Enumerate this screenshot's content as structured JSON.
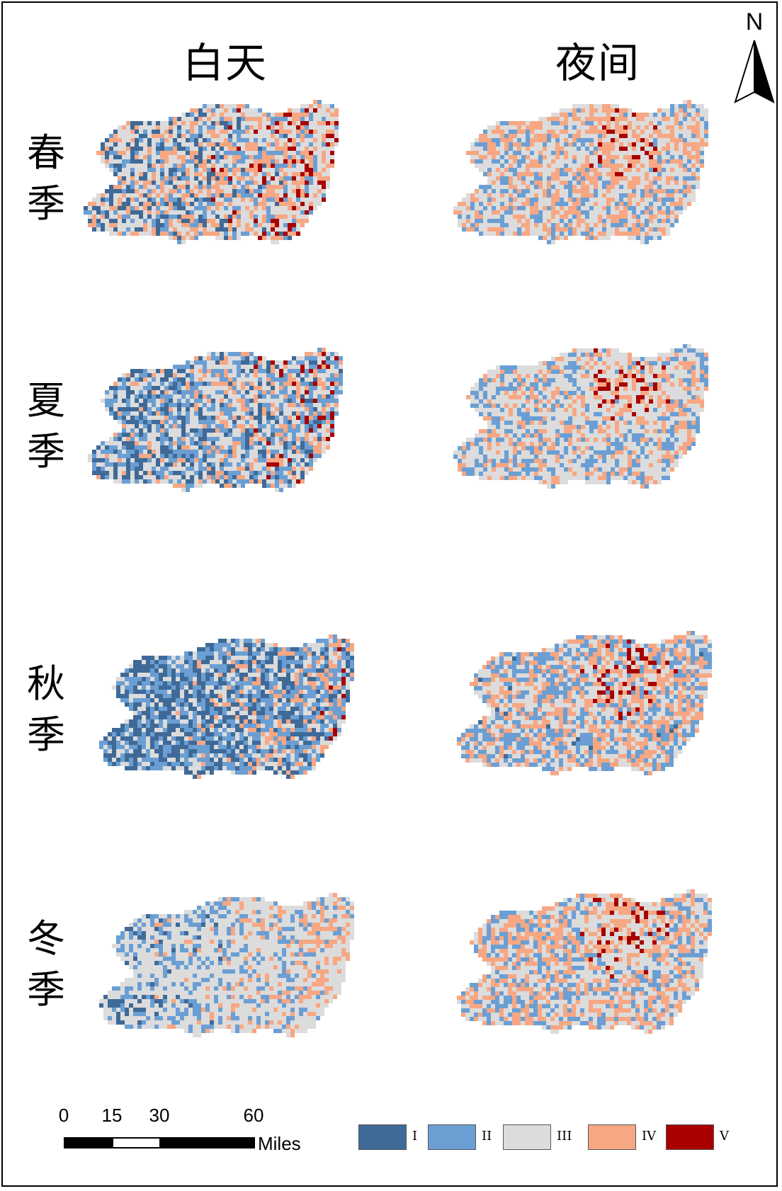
{
  "columns": [
    "白天",
    "夜间"
  ],
  "rows": [
    {
      "label_line1": "春",
      "label_line2": "季"
    },
    {
      "label_line1": "夏",
      "label_line2": "季"
    },
    {
      "label_line1": "秋",
      "label_line2": "季"
    },
    {
      "label_line1": "冬",
      "label_line2": "季"
    }
  ],
  "north_arrow": {
    "label": "N",
    "icon": "north-arrow-icon"
  },
  "scale_bar": {
    "ticks": [
      "0",
      "15",
      "30",
      "60"
    ],
    "unit": "Miles"
  },
  "legend": [
    {
      "label": "I",
      "color": "#3f6a98"
    },
    {
      "label": "II",
      "color": "#6b9fd4"
    },
    {
      "label": "III",
      "color": "#dcdcdc"
    },
    {
      "label": "IV",
      "color": "#f7a783"
    },
    {
      "label": "V",
      "color": "#a80000"
    }
  ],
  "panels": [
    {
      "season": "春季",
      "period": "白天",
      "mix": {
        "I": 0.14,
        "II": 0.14,
        "III": 0.34,
        "IV": 0.26,
        "V": 0.12
      }
    },
    {
      "season": "春季",
      "period": "夜间",
      "mix": {
        "I": 0.02,
        "II": 0.22,
        "III": 0.38,
        "IV": 0.32,
        "V": 0.06
      }
    },
    {
      "season": "夏季",
      "period": "白天",
      "mix": {
        "I": 0.22,
        "II": 0.24,
        "III": 0.28,
        "IV": 0.18,
        "V": 0.08
      }
    },
    {
      "season": "夏季",
      "period": "夜间",
      "mix": {
        "I": 0.02,
        "II": 0.26,
        "III": 0.44,
        "IV": 0.22,
        "V": 0.06
      }
    },
    {
      "season": "秋季",
      "period": "白天",
      "mix": {
        "I": 0.32,
        "II": 0.3,
        "III": 0.2,
        "IV": 0.16,
        "V": 0.02
      }
    },
    {
      "season": "秋季",
      "period": "夜间",
      "mix": {
        "I": 0.06,
        "II": 0.3,
        "III": 0.3,
        "IV": 0.26,
        "V": 0.08
      }
    },
    {
      "season": "冬季",
      "period": "白天",
      "mix": {
        "I": 0.06,
        "II": 0.22,
        "III": 0.52,
        "IV": 0.2,
        "V": 0.0
      }
    },
    {
      "season": "冬季",
      "period": "夜间",
      "mix": {
        "I": 0.02,
        "II": 0.24,
        "III": 0.36,
        "IV": 0.3,
        "V": 0.08
      }
    }
  ]
}
